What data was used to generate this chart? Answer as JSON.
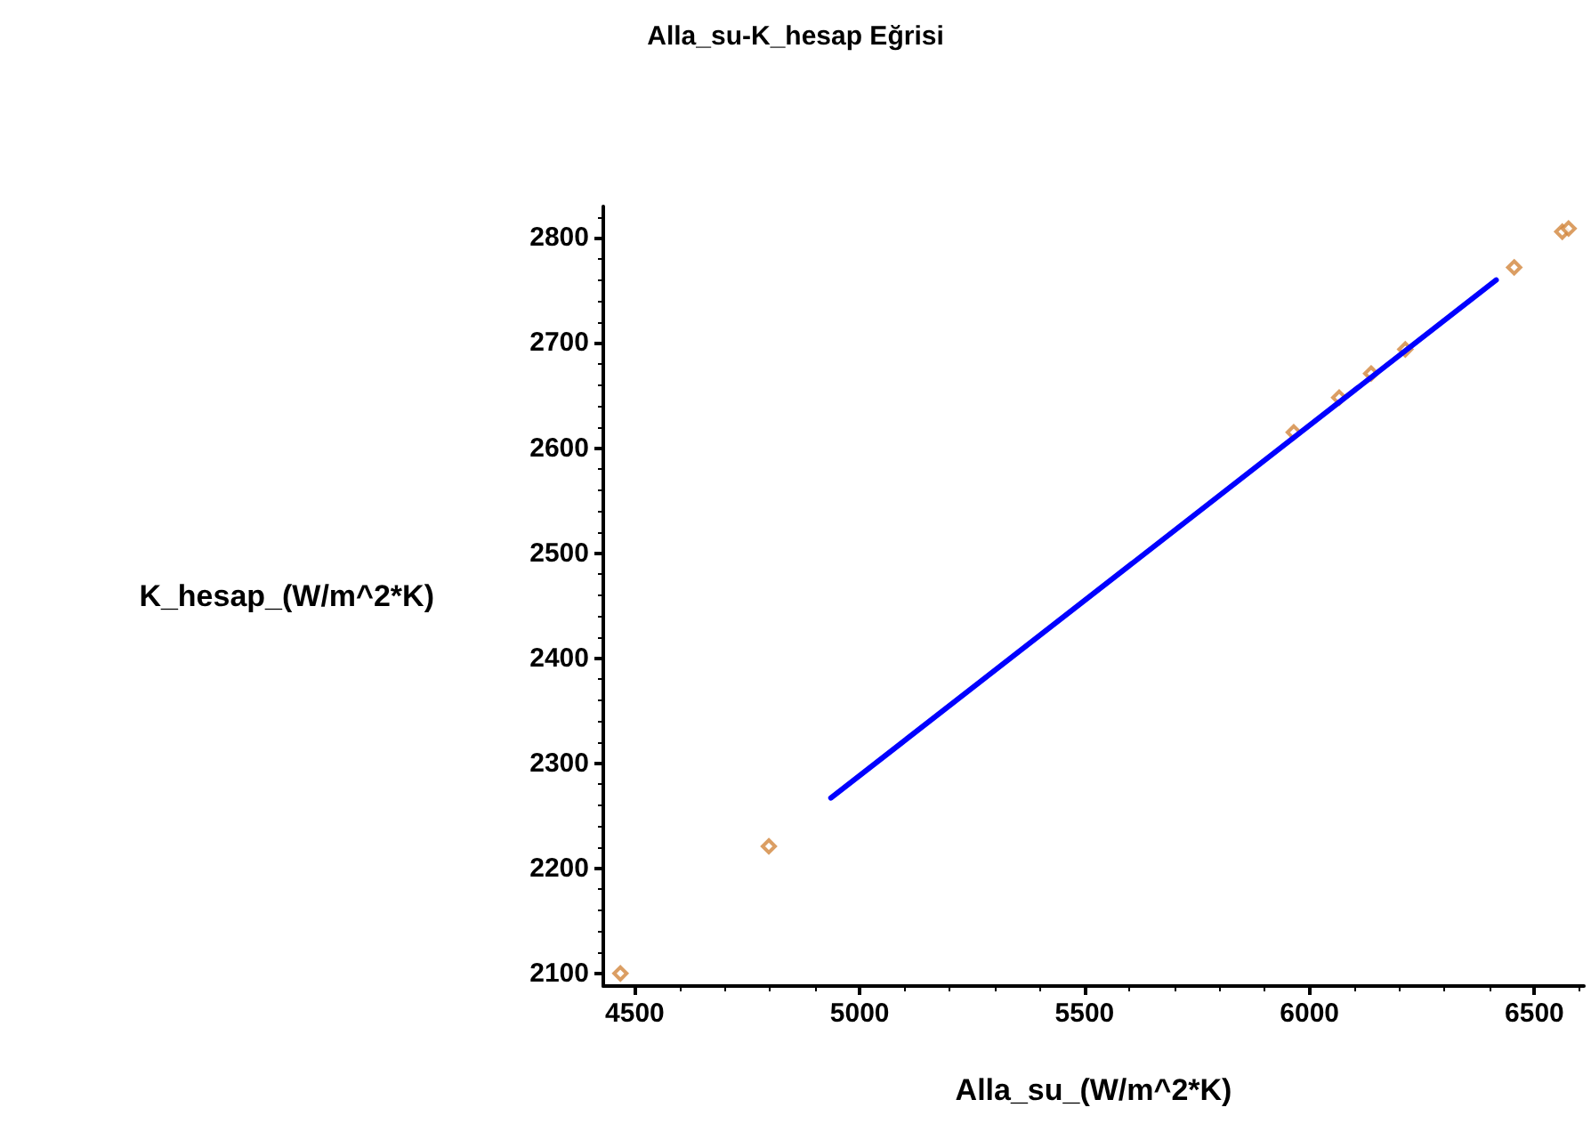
{
  "chart_data": {
    "type": "scatter",
    "title": "Alla_su-K_hesap Eğrisi",
    "xlabel": "Alla_su_(W/m^2*K)",
    "ylabel": "K_hesap_(W/m^2*K)",
    "xlim": [
      4430,
      6610
    ],
    "xticks": [
      4500,
      5000,
      5500,
      6000,
      6500
    ],
    "ylim": [
      2088,
      2830
    ],
    "yticks": [
      2100,
      2200,
      2300,
      2400,
      2500,
      2600,
      2700,
      2800
    ],
    "grid": false,
    "series": [
      {
        "type": "scatter",
        "marker": "diamond",
        "color": "#d2863c",
        "x": [
          4468,
          4798,
          5965,
          6066,
          6137,
          6213,
          6455,
          6562,
          6576
        ],
        "values": [
          2100,
          2221,
          2615,
          2648,
          2671,
          2694,
          2772,
          2806,
          2809
        ]
      },
      {
        "type": "line",
        "marker": "none",
        "line_style": "solid",
        "color": "#0000ff",
        "x": [
          4936,
          6415
        ],
        "values": [
          2267,
          2760
        ]
      }
    ]
  }
}
